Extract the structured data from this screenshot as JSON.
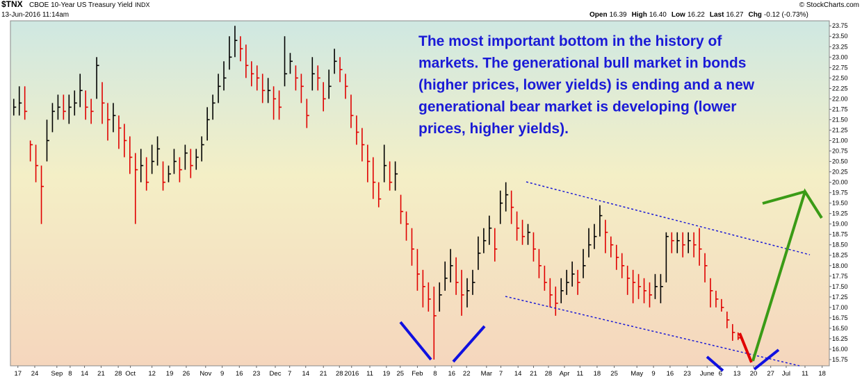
{
  "chart_data": {
    "type": "ohlc",
    "symbol": "$TNX",
    "title": "CBOE 10-Year US Treasury Yield",
    "exchange": "INDX",
    "date": "13-Jun-2016 11:14am",
    "source": "© StockCharts.com",
    "quote": [
      {
        "label": "Open",
        "value": "16.39"
      },
      {
        "label": "High",
        "value": "16.40"
      },
      {
        "label": "Low",
        "value": "16.22"
      },
      {
        "label": "Last",
        "value": "16.27"
      },
      {
        "label": "Chg",
        "value": "-0.12 (-0.73%)"
      }
    ],
    "annotation": [
      "The most important bottom in the history of",
      "markets. The generational bull market in bonds",
      "(higher prices, lower yields) is ending and a new",
      "generational bear market is developing (lower",
      "prices, higher yields)."
    ],
    "up_color": "#000000",
    "down_color": "#e00000",
    "close": [
      21.8,
      21.9,
      21.7,
      20.9,
      20.4,
      19.9,
      21.0,
      21.7,
      21.8,
      21.7,
      21.8,
      21.9,
      22.2,
      21.8,
      21.7,
      22.8,
      21.9,
      21.5,
      21.6,
      21.3,
      21.0,
      20.6,
      20.3,
      20.4,
      20.0,
      20.5,
      20.8,
      20.0,
      20.2,
      20.5,
      20.3,
      20.7,
      20.4,
      20.6,
      20.9,
      21.5,
      21.9,
      22.3,
      22.5,
      23.0,
      23.4,
      23.2,
      22.8,
      22.6,
      22.5,
      22.2,
      22.2,
      22.0,
      21.8,
      22.6,
      22.9,
      22.5,
      22.3,
      21.6,
      22.6,
      22.5,
      22.0,
      22.3,
      22.9,
      22.7,
      22.3,
      21.6,
      21.2,
      20.9,
      20.5,
      20.0,
      19.6,
      20.4,
      20.0,
      20.2,
      19.3,
      19.0,
      18.4,
      17.8,
      17.5,
      17.2,
      16.8,
      17.3,
      17.7,
      18.0,
      17.6,
      17.3,
      17.4,
      17.6,
      18.3,
      18.6,
      18.9,
      18.4,
      19.5,
      19.7,
      19.4,
      18.9,
      18.7,
      18.8,
      18.4,
      18.0,
      17.6,
      17.3,
      17.1,
      17.4,
      17.6,
      17.8,
      17.6,
      18.0,
      18.5,
      18.7,
      19.2,
      18.8,
      18.5,
      18.2,
      18.0,
      17.7,
      17.6,
      17.5,
      17.4,
      17.3,
      17.5,
      17.5,
      18.7,
      18.6,
      18.6,
      18.5,
      18.6,
      18.5,
      18.4,
      18.0,
      17.4,
      17.2,
      17.0,
      16.7,
      16.4,
      16.27
    ],
    "high": [
      22.0,
      22.3,
      22.3,
      21.0,
      20.9,
      20.4,
      21.5,
      21.9,
      22.1,
      22.1,
      22.1,
      22.2,
      22.6,
      22.2,
      22.0,
      23.0,
      22.4,
      21.9,
      21.9,
      21.6,
      21.4,
      21.1,
      20.7,
      20.8,
      20.6,
      20.9,
      21.1,
      20.5,
      20.4,
      20.8,
      20.6,
      20.9,
      20.8,
      20.8,
      21.1,
      21.8,
      22.1,
      22.6,
      22.9,
      23.5,
      23.75,
      23.5,
      23.3,
      22.9,
      22.8,
      22.6,
      22.5,
      22.3,
      22.2,
      23.5,
      23.1,
      22.8,
      22.6,
      22.0,
      23.0,
      22.8,
      22.4,
      22.7,
      23.2,
      23.0,
      22.6,
      22.1,
      21.6,
      21.3,
      20.9,
      20.6,
      20.0,
      20.9,
      20.5,
      20.5,
      19.7,
      19.3,
      18.9,
      18.4,
      17.9,
      17.6,
      17.5,
      17.6,
      18.1,
      18.4,
      18.2,
      17.9,
      17.7,
      17.9,
      18.7,
      18.9,
      19.2,
      18.9,
      19.8,
      20.0,
      19.8,
      19.3,
      19.1,
      19.0,
      18.8,
      18.4,
      18.0,
      17.7,
      17.5,
      17.7,
      17.9,
      18.1,
      17.9,
      18.4,
      18.9,
      19.0,
      19.45,
      19.1,
      18.7,
      18.5,
      18.3,
      18.0,
      17.9,
      17.8,
      17.7,
      17.6,
      17.8,
      17.8,
      18.8,
      18.8,
      18.8,
      18.8,
      18.8,
      18.8,
      18.9,
      18.3,
      17.7,
      17.4,
      17.2,
      16.9,
      16.6,
      16.4
    ],
    "low": [
      21.6,
      21.6,
      21.5,
      20.5,
      20.0,
      19.0,
      20.5,
      21.2,
      21.5,
      21.5,
      21.4,
      21.6,
      21.8,
      21.5,
      21.4,
      22.0,
      21.4,
      21.0,
      21.2,
      20.8,
      20.6,
      20.2,
      19.0,
      20.0,
      19.8,
      20.2,
      20.4,
      19.8,
      20.0,
      20.2,
      20.0,
      20.3,
      20.1,
      20.3,
      20.5,
      21.0,
      21.5,
      21.9,
      22.2,
      22.7,
      23.0,
      22.9,
      22.5,
      22.3,
      22.2,
      21.9,
      21.9,
      21.5,
      21.5,
      22.3,
      22.6,
      22.2,
      21.9,
      21.3,
      22.2,
      22.2,
      21.7,
      22.0,
      22.6,
      22.4,
      22.0,
      21.3,
      20.9,
      20.5,
      20.0,
      19.6,
      19.4,
      20.0,
      19.8,
      19.8,
      19.0,
      18.6,
      18.0,
      17.4,
      17.0,
      16.9,
      15.75,
      16.9,
      17.4,
      17.6,
      17.3,
      16.8,
      17.0,
      17.3,
      17.9,
      18.3,
      18.5,
      18.1,
      19.0,
      19.3,
      19.0,
      18.6,
      18.5,
      18.5,
      18.1,
      17.7,
      17.4,
      17.0,
      16.8,
      17.1,
      17.3,
      17.5,
      17.3,
      17.7,
      18.2,
      18.4,
      18.7,
      18.3,
      18.2,
      17.9,
      17.7,
      17.3,
      17.1,
      17.2,
      17.1,
      17.0,
      17.2,
      17.1,
      17.6,
      18.3,
      18.3,
      18.2,
      18.3,
      18.2,
      18.0,
      17.6,
      17.0,
      17.0,
      16.9,
      16.5,
      16.2,
      16.22
    ],
    "xlim": [
      -0.6,
      147.5
    ],
    "xticks": [
      {
        "value": 0.75,
        "label": "17"
      },
      {
        "value": 3.8,
        "label": "24"
      },
      {
        "value": 7.8,
        "label": "Sep"
      },
      {
        "value": 10.2,
        "label": "8"
      },
      {
        "value": 12.8,
        "label": "14"
      },
      {
        "value": 15.8,
        "label": "21"
      },
      {
        "value": 18.9,
        "label": "28"
      },
      {
        "value": 21.1,
        "label": "Oct"
      },
      {
        "value": 25.0,
        "label": "12"
      },
      {
        "value": 28.2,
        "label": "19"
      },
      {
        "value": 31.2,
        "label": "26"
      },
      {
        "value": 34.7,
        "label": "Nov"
      },
      {
        "value": 37.7,
        "label": "9"
      },
      {
        "value": 40.8,
        "label": "16"
      },
      {
        "value": 43.9,
        "label": "23"
      },
      {
        "value": 47.3,
        "label": "Dec"
      },
      {
        "value": 49.9,
        "label": "7"
      },
      {
        "value": 52.8,
        "label": "14"
      },
      {
        "value": 56.0,
        "label": "21"
      },
      {
        "value": 58.9,
        "label": "28"
      },
      {
        "value": 61.1,
        "label": "2016"
      },
      {
        "value": 64.4,
        "label": "11"
      },
      {
        "value": 67.4,
        "label": "19"
      },
      {
        "value": 69.9,
        "label": "25"
      },
      {
        "value": 73.0,
        "label": "Feb"
      },
      {
        "value": 76.2,
        "label": "8"
      },
      {
        "value": 79.2,
        "label": "16"
      },
      {
        "value": 81.9,
        "label": "22"
      },
      {
        "value": 85.5,
        "label": "Mar"
      },
      {
        "value": 88.1,
        "label": "7"
      },
      {
        "value": 91.2,
        "label": "14"
      },
      {
        "value": 94.0,
        "label": "21"
      },
      {
        "value": 96.7,
        "label": "28"
      },
      {
        "value": 99.6,
        "label": "Apr"
      },
      {
        "value": 102.4,
        "label": "11"
      },
      {
        "value": 105.5,
        "label": "18"
      },
      {
        "value": 108.6,
        "label": "25"
      },
      {
        "value": 112.7,
        "label": "May"
      },
      {
        "value": 115.7,
        "label": "9"
      },
      {
        "value": 118.7,
        "label": "16"
      },
      {
        "value": 121.8,
        "label": "23"
      },
      {
        "value": 125.4,
        "label": "June"
      },
      {
        "value": 127.8,
        "label": "6"
      },
      {
        "value": 130.8,
        "label": "13"
      },
      {
        "value": 133.8,
        "label": "20"
      },
      {
        "value": 136.9,
        "label": "27"
      },
      {
        "value": 139.7,
        "label": "Jul"
      },
      {
        "value": 143.1,
        "label": "11"
      },
      {
        "value": 146.2,
        "label": "18"
      }
    ],
    "ylim": [
      15.6,
      23.87
    ],
    "yticks": [
      15.75,
      {
        "value": 16,
        "label": "16.00"
      },
      16.25,
      {
        "value": 16.5,
        "label": "16.50"
      },
      16.75,
      {
        "value": 17,
        "label": "17.00"
      },
      17.25,
      {
        "value": 17.5,
        "label": "17.50"
      },
      17.75,
      {
        "value": 18,
        "label": "18.00"
      },
      18.25,
      {
        "value": 18.5,
        "label": "18.50"
      },
      18.75,
      {
        "value": 19,
        "label": "19.00"
      },
      19.25,
      {
        "value": 19.5,
        "label": "19.50"
      },
      19.75,
      {
        "value": 20,
        "label": "20.00"
      },
      20.25,
      {
        "value": 20.5,
        "label": "20.50"
      },
      20.75,
      {
        "value": 21,
        "label": "21.00"
      },
      21.25,
      {
        "value": 21.5,
        "label": "21.50"
      },
      21.75,
      {
        "value": 22,
        "label": "22.00"
      },
      22.25,
      {
        "value": 22.5,
        "label": "22.50"
      },
      22.75,
      {
        "value": 23,
        "label": "23.00"
      },
      23.25,
      {
        "value": 23.5,
        "label": "23.50"
      },
      23.75
    ]
  }
}
